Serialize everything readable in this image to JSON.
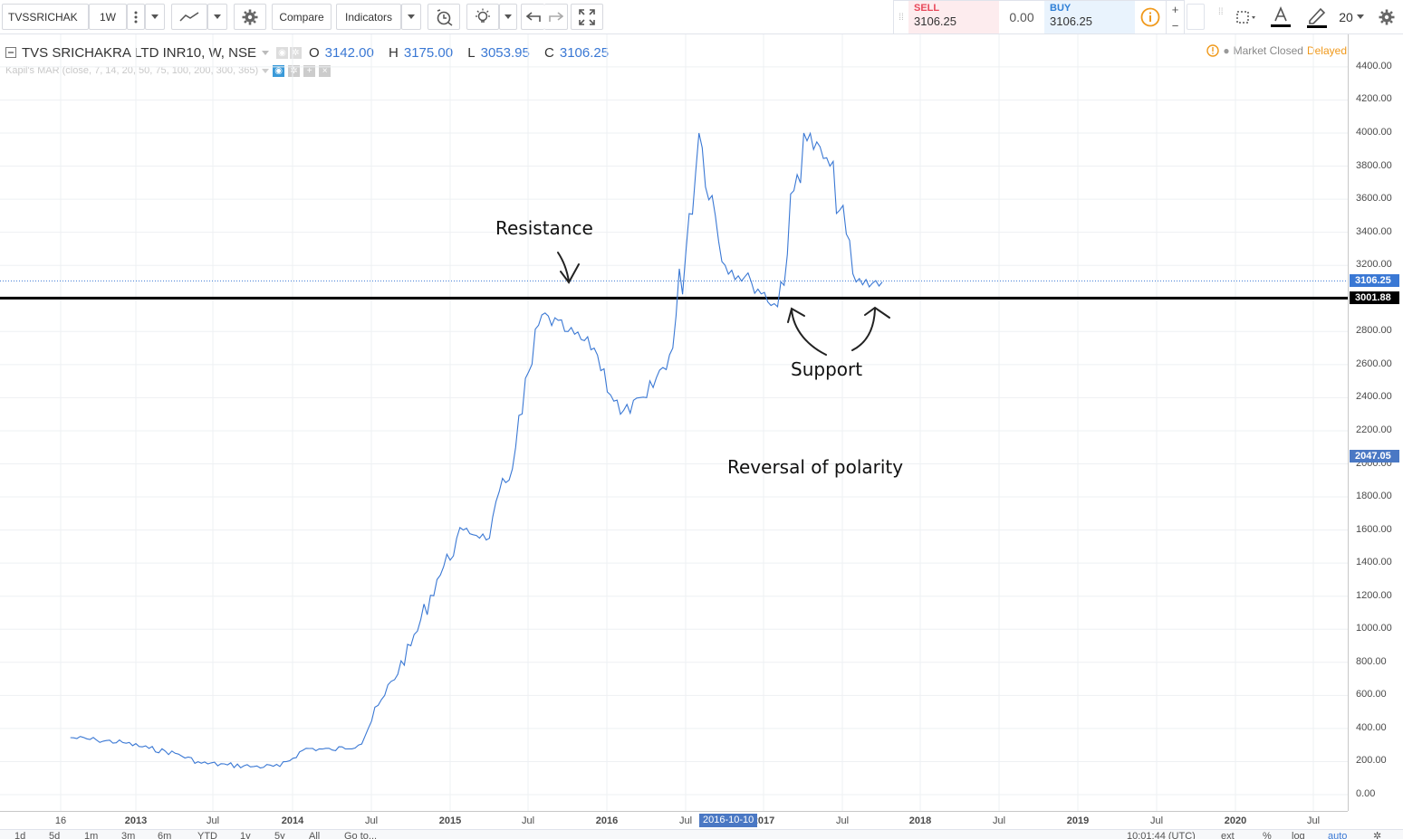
{
  "toolbar": {
    "symbol": "TVSSRICHAK",
    "interval": "1W",
    "compare_label": "Compare",
    "indicators_label": "Indicators",
    "font_size": "20"
  },
  "trade": {
    "sell_label": "SELL",
    "sell_price": "3106.25",
    "spread": "0.00",
    "buy_label": "BUY",
    "buy_price": "3106.25",
    "plus": "+",
    "minus": "−"
  },
  "legend": {
    "title": "TVS SRICHAKRA LTD INR10, W, NSE",
    "open_label": "O",
    "open": "3142.00",
    "high_label": "H",
    "high": "3175.00",
    "low_label": "L",
    "low": "3053.95",
    "close_label": "C",
    "close": "3106.25",
    "indicator": "Kapil's MAR (close, 7, 14, 20, 50, 75, 100, 200, 300, 365)"
  },
  "status": {
    "market": "Market Closed",
    "delay": "Delayed"
  },
  "price_axis": {
    "ticks": [
      "4400.00",
      "4200.00",
      "4000.00",
      "3800.00",
      "3600.00",
      "3400.00",
      "3200.00",
      "3000.00",
      "2800.00",
      "2600.00",
      "2400.00",
      "2200.00",
      "2000.00",
      "1800.00",
      "1600.00",
      "1400.00",
      "1200.00",
      "1000.00",
      "800.00",
      "600.00",
      "400.00",
      "200.00",
      "0.00"
    ],
    "current_price": "3106.25",
    "line_price": "3001.88",
    "crosshair_price": "2047.05"
  },
  "time_axis": {
    "ticks": [
      "16",
      "2013",
      "Jul",
      "2014",
      "Jul",
      "2015",
      "Jul",
      "2016",
      "Jul",
      "2017",
      "Jul",
      "2018",
      "Jul",
      "2019",
      "Jul",
      "2020",
      "Jul"
    ],
    "crosshair_date": "2016-10-10"
  },
  "bottom_bar": {
    "ranges": [
      "1d",
      "5d",
      "1m",
      "3m",
      "6m",
      "YTD",
      "1y",
      "5y",
      "All"
    ],
    "goto": "Go to...",
    "clock": "10:01:44 (UTC)",
    "options": [
      "ext",
      "%",
      "log",
      "auto"
    ]
  },
  "annotations": {
    "resistance": "Resistance",
    "support": "Support",
    "reversal": "Reversal of polarity"
  },
  "colors": {
    "series": "#3a78d4",
    "level_line": "#000000",
    "sell": "#e8485a",
    "buy": "#2e7fd6",
    "warning": "#f0991b"
  },
  "chart_data": {
    "type": "line",
    "ylim": [
      -100,
      4500
    ],
    "x": [
      "2012-08",
      "2012-10",
      "2012-12",
      "2013-02",
      "2013-04",
      "2013-06",
      "2013-08",
      "2013-10",
      "2013-12",
      "2014-02",
      "2014-04",
      "2014-06",
      "2014-08",
      "2014-10",
      "2014-12",
      "2015-02",
      "2015-04",
      "2015-06",
      "2015-08",
      "2015-10",
      "2015-12",
      "2016-02",
      "2016-04",
      "2016-06",
      "2016-08",
      "2016-10",
      "2016-12",
      "2017-02",
      "2017-04",
      "2017-06",
      "2017-08",
      "2017-10"
    ],
    "series": [
      {
        "values": [
          345,
          330,
          315,
          280,
          250,
          190,
          180,
          170,
          170,
          280,
          270,
          300,
          600,
          900,
          1300,
          1600,
          1550,
          2100,
          2900,
          2800,
          2700,
          2300,
          2400,
          2700,
          4000,
          3200,
          3100,
          2950,
          4000,
          3800,
          3100,
          3100
        ]
      }
    ],
    "levels": [
      3001.88
    ],
    "grid": true,
    "last": 3106.25
  }
}
